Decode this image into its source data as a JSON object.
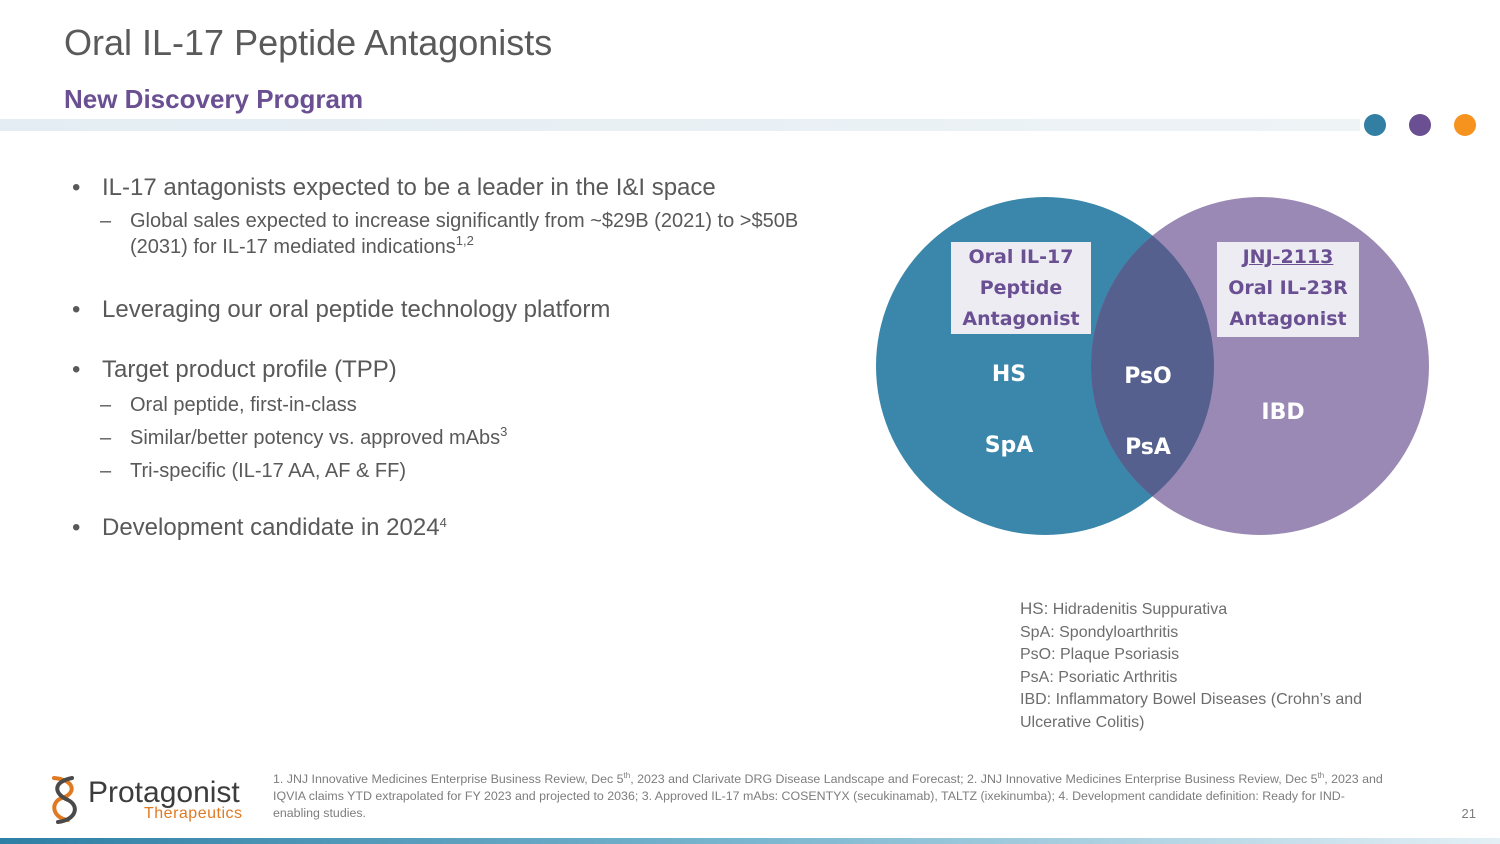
{
  "header": {
    "title": "Oral IL-17 Peptide Antagonists",
    "subtitle": "New Discovery Program",
    "dot_colors": [
      "#337fa4",
      "#6a4f93",
      "#f6921e"
    ]
  },
  "bullets": {
    "b1": "IL-17 antagonists expected to be a leader in the I&I space",
    "b1_sub": "Global sales expected to increase significantly from ~$29B (2021) to >$50B (2031) for IL-17 mediated indications",
    "b1_sub_sup": "1,2",
    "b2": "Leveraging our oral peptide technology platform",
    "b3": "Target product profile (TPP)",
    "b3_sub1": "Oral peptide, first-in-class",
    "b3_sub2": "Similar/better potency vs. approved mAbs",
    "b3_sub2_sup": "3",
    "b3_sub3": "Tri-specific (IL-17 AA, AF & FF)",
    "b4": "Development candidate in 2024",
    "b4_sup": "4"
  },
  "venn": {
    "left_color": "#3a87ab",
    "right_color": "#9a89b4",
    "overlap_color": "#55608f",
    "left_box": [
      "Oral IL-17",
      "Peptide",
      "Antagonist"
    ],
    "right_box": [
      "JNJ-2113",
      "Oral IL-23R",
      "Antagonist"
    ],
    "left_labels": [
      "HS",
      "SpA"
    ],
    "overlap_labels": [
      "PsO",
      "PsA"
    ],
    "right_labels": [
      "IBD"
    ]
  },
  "legend": {
    "hs_prefix": "HS:",
    "hs_text": "Hidradenitis Suppurativa",
    "spa": "SpA: Spondyloarthritis",
    "pso": "PsO: Plaque Psoriasis",
    "psa": "PsA: Psoriatic Arthritis",
    "ibd": "IBD: Inflammatory Bowel Diseases (Crohn’s and Ulcerative Colitis)"
  },
  "footer": {
    "logo_name": "Protagonist",
    "logo_sub": "Therapeutics",
    "fn_a": "1. JNJ Innovative Medicines Enterprise Business Review, Dec 5",
    "fn_sup1": "th",
    "fn_b": ", 2023 and Clarivate DRG Disease Landscape and Forecast; 2. JNJ Innovative Medicines Enterprise Business Review, Dec 5",
    "fn_sup2": "th",
    "fn_c": ", 2023 and IQVIA claims YTD extrapolated for FY 2023 and projected to 2036; 3. Approved IL-17 mAbs: COSENTYX (secukinamab), TALTZ (ixekinumba); 4. Development candidate definition: Ready for IND-enabling studies.",
    "page_number": "21"
  }
}
